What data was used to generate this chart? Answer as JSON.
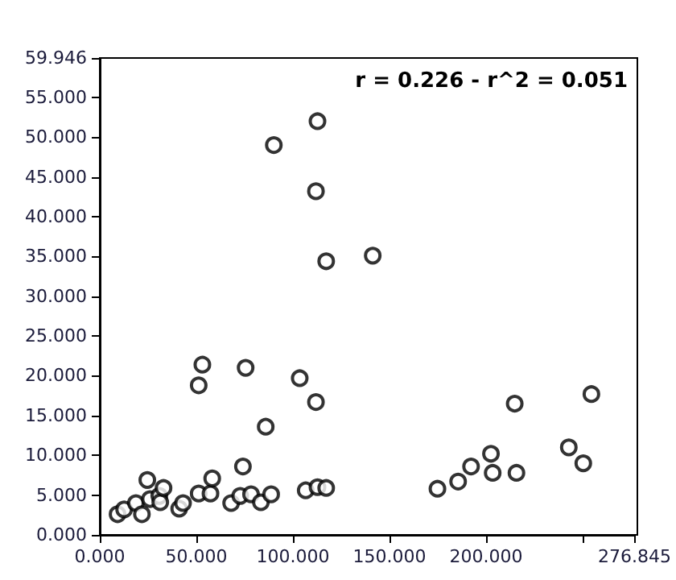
{
  "chart_data": {
    "type": "scatter",
    "marker": "circle",
    "grid": false,
    "annotations": [
      "r = 0.226 - r^2 = 0.051"
    ],
    "xlim": [
      0,
      276.845
    ],
    "xticks": [
      {
        "value": 0,
        "label": "0.000"
      },
      {
        "value": 50,
        "label": "50.000"
      },
      {
        "value": 100,
        "label": "100.000"
      },
      {
        "value": 150,
        "label": "150.000"
      },
      {
        "value": 200,
        "label": "200.000"
      },
      {
        "value": 250,
        "label": null
      },
      {
        "value": 276.845,
        "label": "276.845"
      }
    ],
    "ylim": [
      0,
      59.946
    ],
    "yticks": [
      {
        "value": 0,
        "label": "0.000"
      },
      {
        "value": 5,
        "label": "5.000"
      },
      {
        "value": 10,
        "label": "10.000"
      },
      {
        "value": 15,
        "label": "15.000"
      },
      {
        "value": 20,
        "label": "20.000"
      },
      {
        "value": 25,
        "label": "25.000"
      },
      {
        "value": 30,
        "label": "30.000"
      },
      {
        "value": 35,
        "label": "35.000"
      },
      {
        "value": 40,
        "label": "40.000"
      },
      {
        "value": 45,
        "label": "45.000"
      },
      {
        "value": 50,
        "label": "50.000"
      },
      {
        "value": 55,
        "label": "55.000"
      },
      {
        "value": 59.946,
        "label": "59.946"
      }
    ],
    "series": [
      {
        "color": "#000000",
        "x": [
          9.2,
          12.6,
          18.7,
          21.8,
          24.6,
          26.0,
          30.8,
          31.3,
          33.0,
          41.1,
          43.1,
          51.2,
          51.2,
          53.1,
          57.3,
          58.2,
          68.0,
          72.7,
          74.1,
          75.5,
          78.3,
          83.4,
          85.9,
          88.7,
          103.5,
          106.6,
          111.9,
          112.7,
          117.2,
          174.8,
          185.5,
          192.2,
          202.5,
          203.4,
          214.8,
          215.7,
          242.8,
          250.3,
          254.5,
          90.1,
          112.7,
          111.9,
          117.2,
          141.3
        ],
        "values": [
          2.6,
          3.2,
          4.0,
          2.6,
          6.9,
          4.5,
          4.9,
          4.1,
          5.9,
          3.3,
          4.0,
          5.2,
          18.8,
          21.4,
          5.2,
          7.1,
          4.0,
          4.9,
          8.6,
          21.0,
          5.1,
          4.1,
          13.6,
          5.1,
          19.7,
          5.6,
          16.7,
          6.0,
          5.9,
          5.8,
          6.7,
          8.6,
          10.2,
          7.8,
          16.5,
          7.8,
          11.0,
          9.0,
          17.7,
          49.0,
          52.0,
          43.2,
          34.4,
          35.1
        ]
      }
    ]
  }
}
